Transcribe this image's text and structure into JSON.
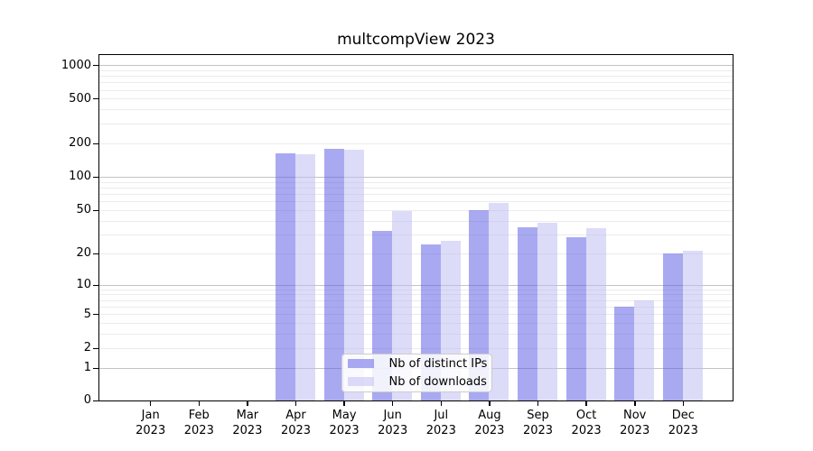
{
  "chart_data": {
    "type": "bar",
    "title": "multcompView 2023",
    "categories": [
      "Jan 2023",
      "Feb 2023",
      "Mar 2023",
      "Apr 2023",
      "May 2023",
      "Jun 2023",
      "Jul 2023",
      "Aug 2023",
      "Sep 2023",
      "Oct 2023",
      "Nov 2023",
      "Dec 2023"
    ],
    "series": [
      {
        "name": "Nb of distinct IPs",
        "values": [
          0,
          0,
          0,
          162,
          177,
          32,
          24,
          50,
          35,
          28,
          6,
          20
        ]
      },
      {
        "name": "Nb of downloads",
        "values": [
          0,
          0,
          0,
          160,
          174,
          49,
          26,
          58,
          38,
          34,
          7,
          21
        ]
      }
    ],
    "xlabel": "",
    "ylabel": "",
    "yscale": "log1p",
    "ytick_values": [
      1000,
      500,
      200,
      100,
      50,
      20,
      10,
      5,
      2,
      1,
      0
    ],
    "ylim": [
      0,
      1240
    ],
    "grid": "on",
    "grid_major_at": [
      1,
      10,
      100,
      1000
    ],
    "legend_position": "inside-bottom-center"
  },
  "legend": {
    "items": [
      {
        "label": "Nb of distinct IPs",
        "series": "ips"
      },
      {
        "label": "Nb of downloads",
        "series": "downloads"
      }
    ]
  },
  "colors": {
    "ips_bar": "#5a5ae6",
    "downloads_bar": "#bcbcf1",
    "bar_opacity": 0.52,
    "grid_major": "#c3c3c3",
    "grid_minor": "#ebebeb",
    "axis": "#000000",
    "legend_border": "#cccccc",
    "legend_bg_opacity": 0.85
  }
}
